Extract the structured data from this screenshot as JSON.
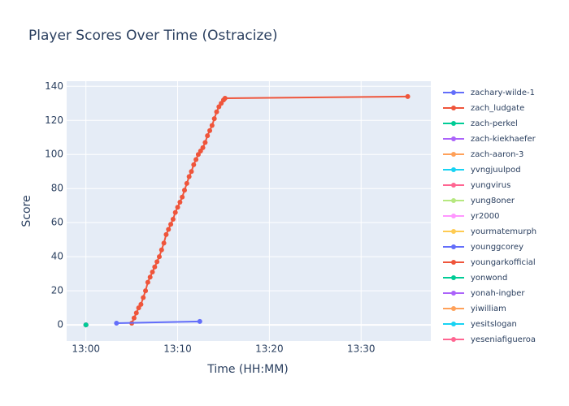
{
  "chart_data": {
    "type": "line",
    "title": "Player Scores Over Time (Ostracize)",
    "x_label": "Time (HH:MM)",
    "y_label": "Score",
    "xlim": [
      "12:57:54",
      "13:37:36"
    ],
    "ylim": [
      -9.5,
      143
    ],
    "xticks": [
      "13:00",
      "13:10",
      "13:20",
      "13:30"
    ],
    "yticks": [
      0,
      20,
      40,
      60,
      80,
      100,
      120,
      140
    ],
    "grid": true,
    "series": [
      {
        "name": "zachary-wilde-1",
        "color": "#636efa",
        "x": [
          "13:03:20",
          "13:12:25"
        ],
        "values": [
          1,
          2
        ]
      },
      {
        "name": "zach_ludgate",
        "color": "#EF553B",
        "x": [
          "13:05:00",
          "13:05:15",
          "13:05:30",
          "13:05:45",
          "13:06:00",
          "13:06:15",
          "13:06:30",
          "13:06:45",
          "13:07:00",
          "13:07:15",
          "13:07:30",
          "13:07:45",
          "13:08:00",
          "13:08:15",
          "13:08:30",
          "13:08:45",
          "13:09:00",
          "13:09:15",
          "13:09:30",
          "13:09:45",
          "13:10:00",
          "13:10:15",
          "13:10:30",
          "13:10:45",
          "13:11:00",
          "13:11:15",
          "13:11:30",
          "13:11:45",
          "13:12:00",
          "13:12:15",
          "13:12:30",
          "13:12:45",
          "13:13:00",
          "13:13:15",
          "13:13:30",
          "13:13:45",
          "13:14:00",
          "13:14:15",
          "13:14:30",
          "13:14:45",
          "13:15:00",
          "13:15:10",
          "13:35:05"
        ],
        "values": [
          1,
          4,
          7,
          10,
          12,
          16,
          20,
          25,
          28,
          31,
          34,
          37,
          40,
          44,
          48,
          53,
          56,
          59,
          62,
          66,
          69,
          72,
          75,
          79,
          83,
          87,
          90,
          94,
          97,
          100,
          102,
          104,
          107,
          111,
          114,
          117,
          121,
          125,
          128,
          130,
          132,
          133,
          134
        ]
      },
      {
        "name": "zach-perkel",
        "color": "#00cc96",
        "x": [
          "13:00:00"
        ],
        "values": [
          0
        ]
      },
      {
        "name": "zach-kiekhaefer",
        "color": "#ab63fa",
        "x": [
          "13:00:00"
        ],
        "values": [
          0
        ]
      },
      {
        "name": "zach-aaron-3",
        "color": "#FFA15A",
        "x": [
          "13:00:00"
        ],
        "values": [
          0
        ]
      },
      {
        "name": "yvngjuulpod",
        "color": "#19d3f3",
        "x": [
          "13:00:00"
        ],
        "values": [
          0
        ]
      },
      {
        "name": "yungvirus",
        "color": "#FF6692",
        "x": [
          "13:00:00"
        ],
        "values": [
          0
        ]
      },
      {
        "name": "yung8oner",
        "color": "#B6E880",
        "x": [
          "13:00:00"
        ],
        "values": [
          0
        ]
      },
      {
        "name": "yr2000",
        "color": "#FF97FF",
        "x": [
          "13:00:00"
        ],
        "values": [
          0
        ]
      },
      {
        "name": "yourmatemurph",
        "color": "#FECB52",
        "x": [
          "13:00:00"
        ],
        "values": [
          0
        ]
      },
      {
        "name": "younggcorey",
        "color": "#636efa",
        "x": [
          "13:00:00"
        ],
        "values": [
          0
        ]
      },
      {
        "name": "youngarkofficial",
        "color": "#EF553B",
        "x": [
          "13:00:00"
        ],
        "values": [
          0
        ]
      },
      {
        "name": "yonwond",
        "color": "#00cc96",
        "x": [
          "13:00:00"
        ],
        "values": [
          0
        ]
      },
      {
        "name": "yonah-ingber",
        "color": "#ab63fa",
        "x": [
          "13:00:00"
        ],
        "values": [
          0
        ]
      },
      {
        "name": "yiwilliam",
        "color": "#FFA15A",
        "x": [
          "13:00:00"
        ],
        "values": [
          0
        ]
      },
      {
        "name": "yesitslogan",
        "color": "#19d3f3",
        "x": [
          "13:00:00"
        ],
        "values": [
          0
        ]
      },
      {
        "name": "yeseniafigueroa",
        "color": "#FF6692",
        "x": [
          "13:00:00"
        ],
        "values": [
          0
        ]
      }
    ]
  }
}
